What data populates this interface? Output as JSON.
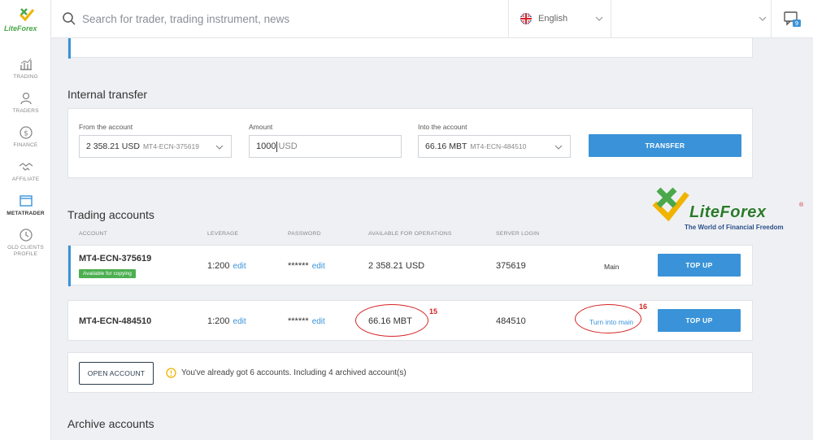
{
  "brand": {
    "name": "LiteForex"
  },
  "sidebar": {
    "items": [
      {
        "label": "TRADING",
        "icon": "chart-bars-icon"
      },
      {
        "label": "TRADERS",
        "icon": "trader-person-icon"
      },
      {
        "label": "FINANCE",
        "icon": "dollar-coin-icon"
      },
      {
        "label": "AFFILIATE",
        "icon": "handshake-icon"
      },
      {
        "label": "METATRADER",
        "icon": "window-icon",
        "active": true
      },
      {
        "label": "OLD CLIENTS PROFILE",
        "icon": "old-profile-icon"
      }
    ]
  },
  "topbar": {
    "search_placeholder": "Search for trader, trading instrument, news",
    "language": "English"
  },
  "internal_transfer": {
    "title": "Internal transfer",
    "from_label": "From the account",
    "from_value": "2 358.21 USD",
    "from_account": "MT4-ECN-375619",
    "amount_label": "Amount",
    "amount_value": "1000",
    "amount_unit": "USD",
    "into_label": "Into the account",
    "into_value": "66.16 MBT",
    "into_account": "MT4-ECN-484510",
    "transfer_button": "TRANSFER"
  },
  "trading_accounts": {
    "title": "Trading accounts",
    "columns": [
      "ACCOUNT",
      "LEVERAGE",
      "PASSWORD",
      "AVAILABLE FOR OPERATIONS",
      "SERVER LOGIN"
    ],
    "rows": [
      {
        "account": "MT4-ECN-375619",
        "badge": "Available for copying",
        "leverage": "1:200",
        "password": "******",
        "available": "2 358.21 USD",
        "server_login": "375619",
        "status": "Main",
        "action": "TOP UP"
      },
      {
        "account": "MT4-ECN-484510",
        "leverage": "1:200",
        "password": "******",
        "available": "66.16 MBT",
        "server_login": "484510",
        "status_link": "Turn into main",
        "action": "TOP UP"
      }
    ],
    "edit_label": "edit",
    "open_account_button": "OPEN ACCOUNT",
    "info_text": "You've already got 6 accounts. Including 4 archived account(s)"
  },
  "annotations": {
    "first": "15",
    "second": "16"
  },
  "archive_accounts": {
    "title": "Archive accounts"
  },
  "watermark": {
    "name": "LiteForex",
    "tagline": "The World of Financial Freedom"
  },
  "colors": {
    "accent": "#3a93d8",
    "green": "#4caf50",
    "annotation": "#d42424"
  }
}
